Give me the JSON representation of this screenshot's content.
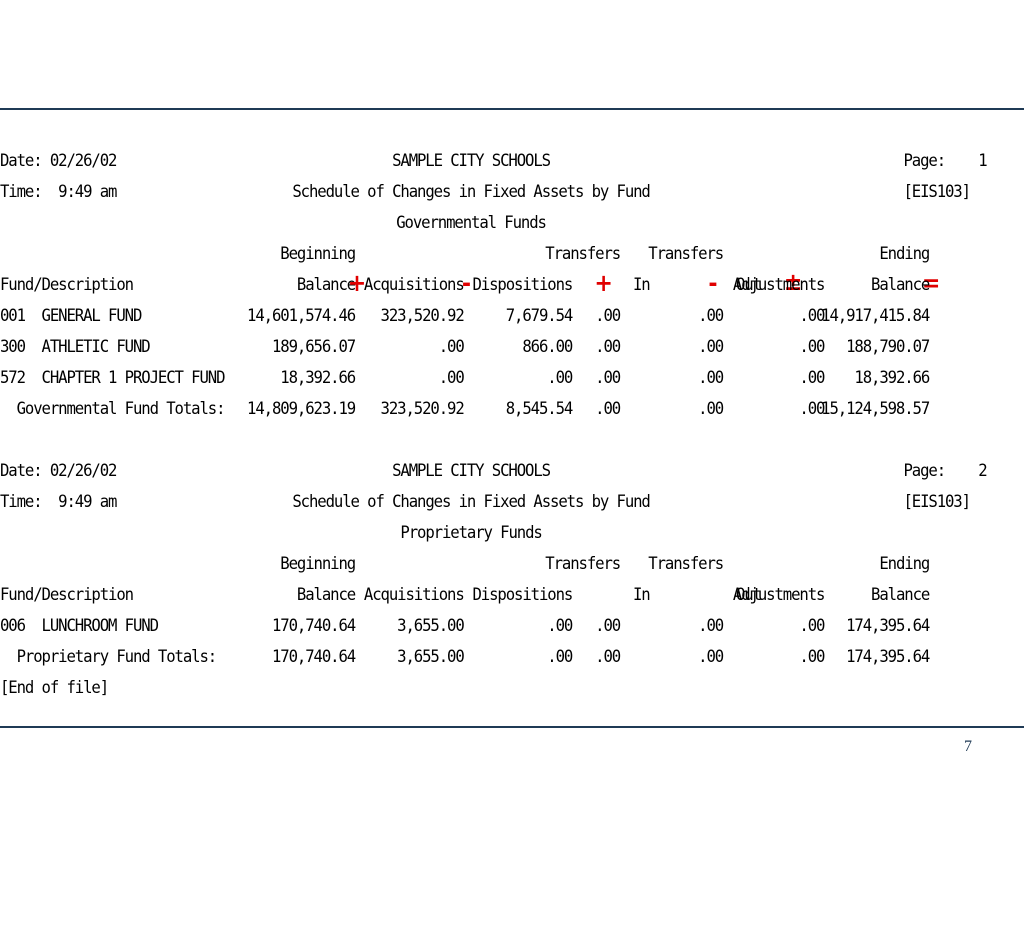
{
  "slide_number": "7",
  "operators": {
    "plus": "+",
    "minus": "-",
    "plus_minus": "±",
    "equals": "="
  },
  "reports": [
    {
      "date": "Date: 02/26/02",
      "time": "Time:  9:49 am",
      "org": "SAMPLE CITY SCHOOLS",
      "title": "Schedule of Changes in Fixed Assets by Fund",
      "subtitle": "Governmental Funds",
      "page": "Page:    1",
      "code": "[EIS103]",
      "headers": {
        "fund_description": "Fund/Description",
        "beginning_1": "Beginning",
        "beginning_2": "Balance",
        "acquisitions": "Acquisitions",
        "dispositions": "Dispositions",
        "transfers_in_1": "Transfers",
        "transfers_in_2": "In",
        "transfers_out_1": "Transfers",
        "transfers_out_2": "Out",
        "adjustments": "Adjustments",
        "ending_1": "Ending",
        "ending_2": "Balance"
      },
      "rows": [
        {
          "fund": "001  GENERAL FUND",
          "beginning": "14,601,574.46",
          "acquisitions": "323,520.92",
          "dispositions": "7,679.54",
          "transfers_in": ".00",
          "transfers_out": ".00",
          "adjustments": ".00",
          "ending": "14,917,415.84"
        },
        {
          "fund": "300  ATHLETIC FUND",
          "beginning": "189,656.07",
          "acquisitions": ".00",
          "dispositions": "866.00",
          "transfers_in": ".00",
          "transfers_out": ".00",
          "adjustments": ".00",
          "ending": "188,790.07"
        },
        {
          "fund": "572  CHAPTER 1 PROJECT FUND",
          "beginning": "18,392.66",
          "acquisitions": ".00",
          "dispositions": ".00",
          "transfers_in": ".00",
          "transfers_out": ".00",
          "adjustments": ".00",
          "ending": "18,392.66"
        }
      ],
      "totals": {
        "label": "  Governmental Fund Totals:",
        "beginning": "14,809,623.19",
        "acquisitions": "323,520.92",
        "dispositions": "8,545.54",
        "transfers_in": ".00",
        "transfers_out": ".00",
        "adjustments": ".00",
        "ending": "15,124,598.57"
      }
    },
    {
      "date": "Date: 02/26/02",
      "time": "Time:  9:49 am",
      "org": "SAMPLE CITY SCHOOLS",
      "title": "Schedule of Changes in Fixed Assets by Fund",
      "subtitle": "Proprietary Funds",
      "page": "Page:    2",
      "code": "[EIS103]",
      "headers": {
        "fund_description": "Fund/Description",
        "beginning_1": "Beginning",
        "beginning_2": "Balance",
        "acquisitions": "Acquisitions",
        "dispositions": "Dispositions",
        "transfers_in_1": "Transfers",
        "transfers_in_2": "In",
        "transfers_out_1": "Transfers",
        "transfers_out_2": "Out",
        "adjustments": "Adjustments",
        "ending_1": "Ending",
        "ending_2": "Balance"
      },
      "rows": [
        {
          "fund": "006  LUNCHROOM FUND",
          "beginning": "170,740.64",
          "acquisitions": "3,655.00",
          "dispositions": ".00",
          "transfers_in": ".00",
          "transfers_out": ".00",
          "adjustments": ".00",
          "ending": "174,395.64"
        }
      ],
      "totals": {
        "label": "  Proprietary Fund Totals:",
        "beginning": "170,740.64",
        "acquisitions": "3,655.00",
        "dispositions": ".00",
        "transfers_in": ".00",
        "transfers_out": ".00",
        "adjustments": ".00",
        "ending": "174,395.64"
      },
      "end_of_file": "[End of file]"
    }
  ]
}
